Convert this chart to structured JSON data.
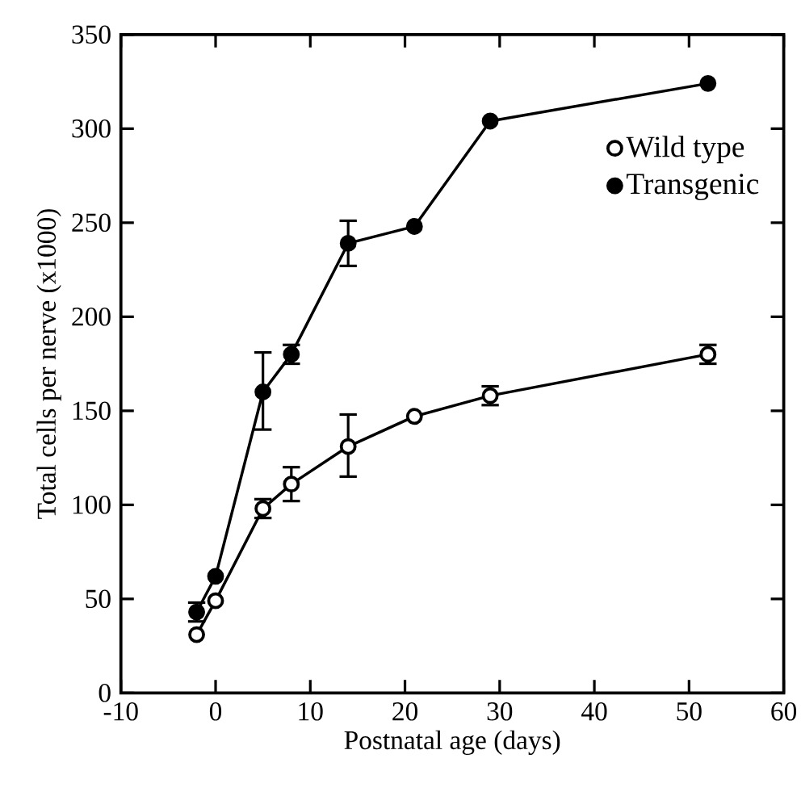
{
  "chart_data": {
    "type": "line",
    "xlabel": "Postnatal age (days)",
    "ylabel": "Total cells per nerve (x1000)",
    "xlim": [
      -10,
      60
    ],
    "xticks": [
      -10,
      0,
      10,
      20,
      30,
      40,
      50,
      60
    ],
    "ylim": [
      0,
      350
    ],
    "yticks": [
      0,
      50,
      100,
      150,
      200,
      250,
      300,
      350
    ],
    "marker": "circle",
    "line_style": "solid",
    "legend": "top right",
    "grid": false,
    "x": [
      -2,
      0,
      5,
      8,
      14,
      21,
      29,
      52
    ],
    "series": [
      {
        "name": "Wild type",
        "color": "#000000",
        "values": [
          31,
          49,
          98,
          111,
          131,
          147,
          158,
          180
        ],
        "errors": [
          null,
          null,
          5,
          9,
          [
            115,
            148
          ],
          null,
          5,
          5
        ]
      },
      {
        "name": "Transgenic",
        "color": "#000000",
        "values": [
          43,
          62,
          160,
          180,
          239,
          248,
          304,
          324
        ],
        "errors": [
          5,
          null,
          [
            140,
            181
          ],
          5,
          [
            227,
            251
          ],
          null,
          null,
          null
        ]
      }
    ]
  }
}
